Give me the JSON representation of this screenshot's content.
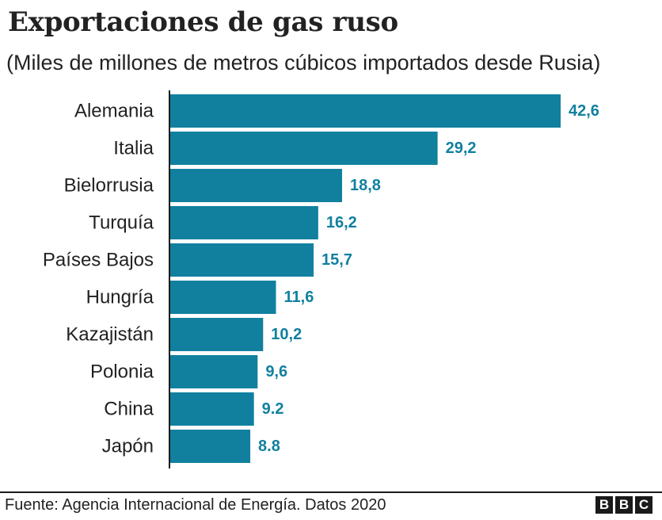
{
  "title": "Exportaciones de gas ruso",
  "subtitle": "(Miles de millones de metros cúbicos importados desde Rusia)",
  "source": "Fuente: Agencia Internacional de Energía. Datos 2020",
  "logo": {
    "letters": [
      "B",
      "B",
      "C"
    ]
  },
  "colors": {
    "bar": "#11809f",
    "label": "#11809f",
    "text": "#222222"
  },
  "chart_data": {
    "type": "bar",
    "orientation": "horizontal",
    "title": "Exportaciones de gas ruso",
    "subtitle": "(Miles de millones de metros cúbicos importados desde Rusia)",
    "xlabel": "",
    "ylabel": "",
    "xlim": [
      0,
      42.6
    ],
    "grid": false,
    "categories": [
      "Alemania",
      "Italia",
      "Bielorrusia",
      "Turquía",
      "Países Bajos",
      "Hungría",
      "Kazajistán",
      "Polonia",
      "China",
      "Japón"
    ],
    "values": [
      42.6,
      29.2,
      18.8,
      16.2,
      15.7,
      11.6,
      10.2,
      9.6,
      9.2,
      8.8
    ],
    "value_labels": [
      "42,6",
      "29,2",
      "18,8",
      "16,2",
      "15,7",
      "11,6",
      "10,2",
      "9,6",
      "9.2",
      "8.8"
    ]
  }
}
